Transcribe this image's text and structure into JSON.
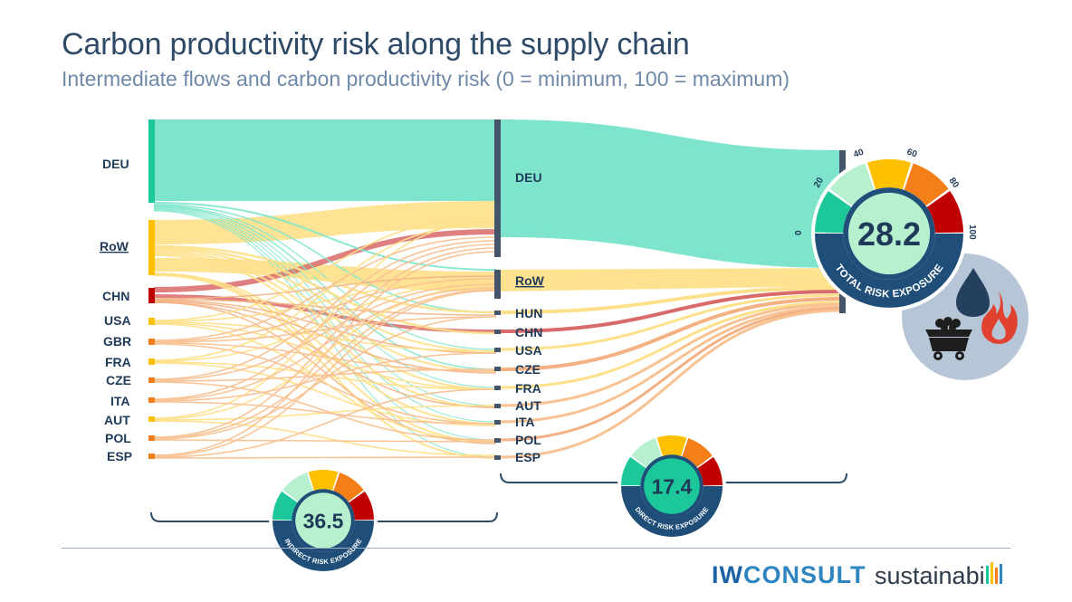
{
  "title": "Carbon productivity risk along the supply chain",
  "subtitle": "Intermediate flows and carbon productivity risk (0 = minimum, 100 = maximum)",
  "left_nodes": [
    "DEU",
    "RoW",
    "CHN",
    "USA",
    "GBR",
    "FRA",
    "CZE",
    "ITA",
    "AUT",
    "POL",
    "ESP"
  ],
  "middle_nodes": [
    "DEU",
    "RoW",
    "HUN",
    "CHN",
    "USA",
    "CZE",
    "FRA",
    "AUT",
    "ITA",
    "POL",
    "ESP"
  ],
  "gauges": {
    "indirect": {
      "value": "36.5",
      "caption": "INDIRECT RISK EXPOSURE"
    },
    "direct": {
      "value": "17.4",
      "caption": "DIRECT RISK EXPOSURE"
    },
    "total": {
      "value": "28.2",
      "caption": "TOTAL RISK EXPOSURE",
      "ticks": [
        "0",
        "20",
        "40",
        "60",
        "80",
        "100"
      ]
    }
  },
  "colors": {
    "low": "#1cc79a",
    "light": "#b6f0cf",
    "medium": "#ffc000",
    "high": "#f47e17",
    "very_high": "#c00000",
    "flow_teal": "#7ee5cc",
    "flow_yellow": "#ffe08a",
    "flow_orange": "#f9c293",
    "flow_red": "#d96a6a",
    "node_dark": "#44546a",
    "navy": "#1f4e79"
  },
  "icons": [
    "water-drop-icon",
    "coal-cart-icon",
    "flame-icon"
  ],
  "logos": {
    "iw": "IW",
    "consult": "CONSULT",
    "sustainabill": "sustainabi"
  }
}
